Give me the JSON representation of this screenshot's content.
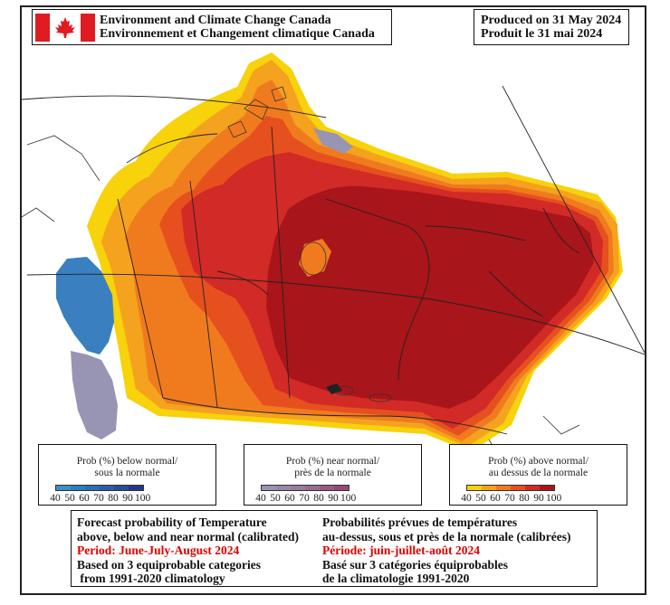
{
  "header": {
    "agency_en": "Environment and Climate Change Canada",
    "agency_fr": "Environnement et Changement climatique Canada",
    "produced_en": "Produced on 31 May 2024",
    "produced_fr": "Produit le 31 mai 2024"
  },
  "legends": {
    "below": {
      "title_en": "Prob (%) below normal/",
      "title_fr": "sous la normale",
      "ticks": [
        "40",
        "50",
        "60",
        "70",
        "80",
        "90",
        "100"
      ],
      "colors": [
        "#3a8fc4",
        "#2c7fbf",
        "#2a6fb3",
        "#2a5ea7",
        "#2a4d99",
        "#22398a"
      ]
    },
    "near": {
      "title_en": "Prob (%) near normal/",
      "title_fr": "près de la normale",
      "ticks": [
        "40",
        "50",
        "60",
        "70",
        "80",
        "90",
        "100"
      ],
      "colors": [
        "#9894b4",
        "#9888a8",
        "#987c9c",
        "#986c90",
        "#985a84",
        "#984878"
      ]
    },
    "above": {
      "title_en": "Prob (%) above normal/",
      "title_fr": "au dessus de la normale",
      "ticks": [
        "40",
        "50",
        "60",
        "70",
        "80",
        "90",
        "100"
      ],
      "colors": [
        "#f8d20a",
        "#f5a21e",
        "#f07b1e",
        "#e6501e",
        "#d22a26",
        "#a8151a"
      ]
    }
  },
  "info": {
    "en_line1": "Forecast probability of Temperature",
    "en_line2": "above, below and near normal (calibrated)",
    "en_period": "Period: June-July-August 2024",
    "en_line4": "Based on 3 equiprobable categories",
    "en_line5": " from 1991-2020 climatology",
    "fr_line1": "Probabilités prévues de températures",
    "fr_line2": "au-dessus, sous et près de la normale (calibrées)",
    "fr_period": "Période: juin-juillet-août 2024",
    "fr_line4": "Basé sur 3 catégories équiprobables",
    "fr_line5": "de la climatologie 1991-2020"
  },
  "map_colors": {
    "yellow": "#f8d20a",
    "gold": "#f5a21e",
    "orange": "#f07b1e",
    "dark_orange": "#e6501e",
    "red": "#d22a26",
    "dark_red": "#a8151a",
    "blue": "#3a7fc0",
    "purple": "#9894b4"
  }
}
